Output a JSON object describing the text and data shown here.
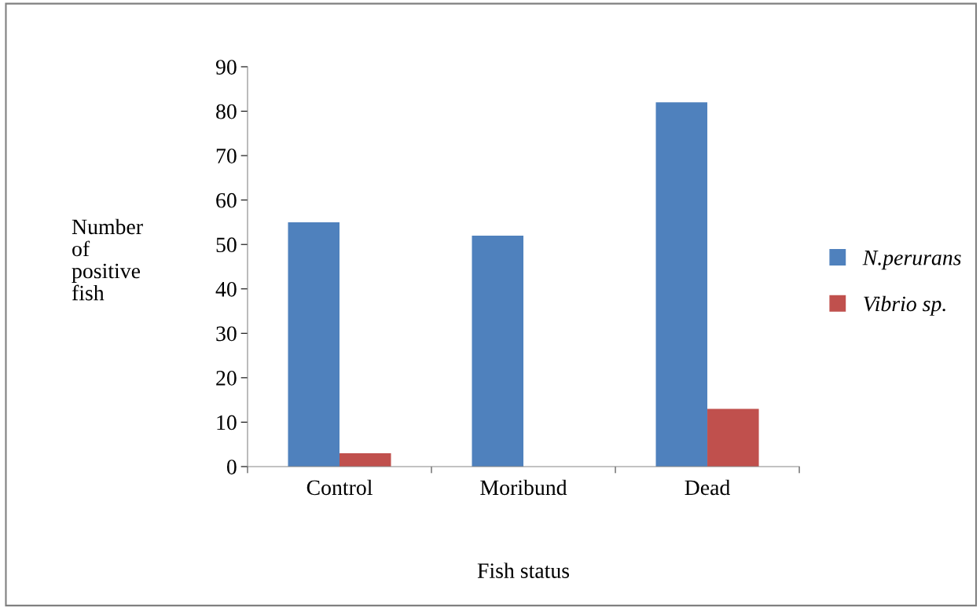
{
  "chart_data": {
    "type": "bar",
    "xlabel": "Fish status",
    "ylabel": "Number of positive fish",
    "categories": [
      "Control",
      "Moribund",
      "Dead"
    ],
    "series": [
      {
        "name": "N.perurans",
        "color": "#4f81bd",
        "values": [
          55,
          52,
          82
        ]
      },
      {
        "name": "Vibrio sp.",
        "color": "#c0504d",
        "values": [
          3,
          0,
          13
        ]
      }
    ],
    "ylim": [
      0,
      90
    ],
    "yticks": [
      0,
      10,
      20,
      30,
      40,
      50,
      60,
      70,
      80,
      90
    ],
    "grid": false,
    "legend": "right"
  }
}
